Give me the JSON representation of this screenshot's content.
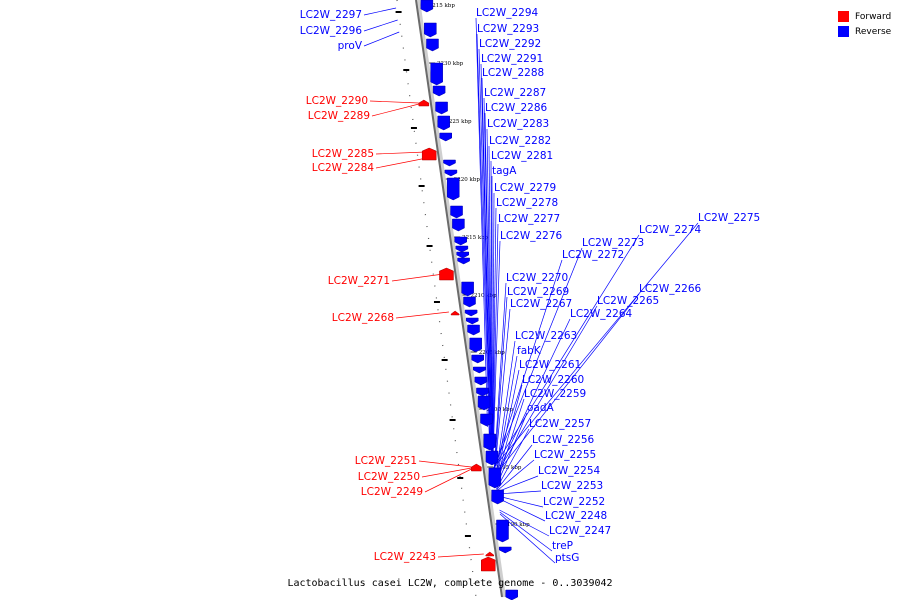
{
  "legend": {
    "forward_label": "Forward",
    "forward_color": "#ff0000",
    "reverse_label": "Reverse",
    "reverse_color": "#0000ff"
  },
  "caption": "Lactobacillus casei LC2W, complete genome - 0..3039042",
  "ticks": [
    "2215 kbp",
    "2230 kbp",
    "2225 kbp",
    "2220 kbp",
    "2215 kbp",
    "2210 kbp",
    "2205 kbp",
    "2200 kbp",
    "2195 kbp",
    "2190 kbp"
  ],
  "reverse_genes": [
    "LC2W_2294",
    "LC2W_2293",
    "LC2W_2292",
    "LC2W_2291",
    "LC2W_2288",
    "LC2W_2287",
    "LC2W_2286",
    "LC2W_2283",
    "LC2W_2282",
    "LC2W_2281",
    "tagA",
    "LC2W_2279",
    "LC2W_2278",
    "LC2W_2277",
    "LC2W_2276",
    "LC2W_2275",
    "LC2W_2274",
    "LC2W_2273",
    "LC2W_2272",
    "LC2W_2270",
    "LC2W_2269",
    "LC2W_2267",
    "LC2W_2266",
    "LC2W_2265",
    "LC2W_2264",
    "LC2W_2263",
    "fabK",
    "LC2W_2261",
    "LC2W_2260",
    "LC2W_2259",
    "oadA",
    "LC2W_2257",
    "LC2W_2256",
    "LC2W_2255",
    "LC2W_2254",
    "LC2W_2253",
    "LC2W_2252",
    "LC2W_2248",
    "LC2W_2247",
    "treP",
    "ptsG"
  ],
  "reverse_left_genes": [
    "LC2W_2297",
    "LC2W_2296",
    "proV"
  ],
  "forward_genes": [
    "LC2W_2290",
    "LC2W_2289",
    "LC2W_2285",
    "LC2W_2284",
    "LC2W_2271",
    "LC2W_2268",
    "LC2W_2251",
    "LC2W_2250",
    "LC2W_2249",
    "LC2W_2243"
  ]
}
